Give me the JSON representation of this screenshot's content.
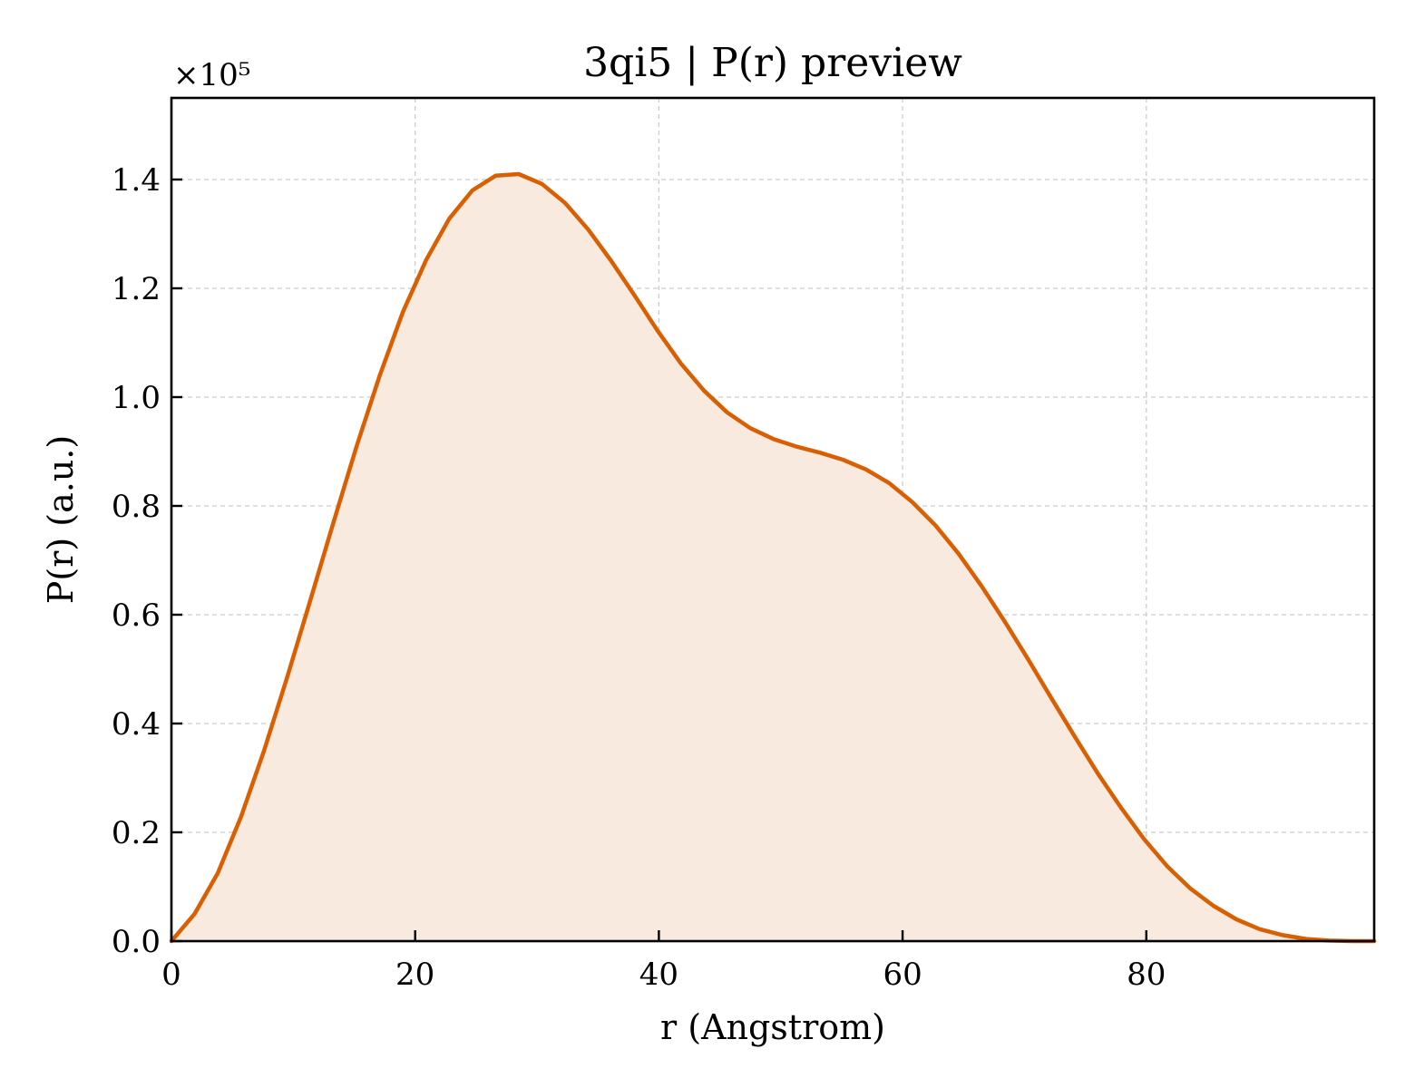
{
  "chart_data": {
    "type": "area",
    "title": "3qi5 | P(r) preview",
    "xlabel": "r (Angstrom)",
    "ylabel": "P(r) (a.u.)",
    "y_multiplier": "×10⁵",
    "xlim": [
      0,
      98.7
    ],
    "ylim": [
      0,
      1.55
    ],
    "xticks": [
      0,
      20,
      40,
      60,
      80
    ],
    "xtick_labels": [
      "0",
      "20",
      "40",
      "60",
      "80"
    ],
    "yticks": [
      0.0,
      0.2,
      0.4,
      0.6,
      0.8,
      1.0,
      1.2,
      1.4
    ],
    "ytick_labels": [
      "0.0",
      "0.2",
      "0.4",
      "0.6",
      "0.8",
      "1.0",
      "1.2",
      "1.4"
    ],
    "grid": true,
    "line_color": "#d95f02",
    "fill_color": "#f9eadf",
    "series": [
      {
        "x": [
          0,
          1.9,
          3.8,
          5.7,
          7.6,
          9.5,
          11.4,
          13.3,
          15.2,
          17.1,
          19.0,
          20.9,
          22.8,
          24.7,
          26.6,
          28.5,
          30.4,
          32.3,
          34.2,
          36.1,
          38.0,
          39.9,
          41.8,
          43.7,
          45.6,
          47.5,
          49.4,
          51.3,
          53.2,
          55.1,
          57.0,
          58.9,
          60.8,
          62.7,
          64.6,
          66.5,
          68.4,
          70.3,
          72.2,
          74.1,
          76.0,
          77.9,
          79.8,
          81.7,
          83.6,
          85.5,
          87.4,
          89.3,
          91.2,
          93.1,
          95.0,
          96.9,
          98.7
        ],
        "y": [
          0.0,
          0.05,
          0.125,
          0.228,
          0.35,
          0.485,
          0.627,
          0.77,
          0.91,
          1.04,
          1.157,
          1.252,
          1.328,
          1.38,
          1.407,
          1.41,
          1.392,
          1.357,
          1.308,
          1.25,
          1.187,
          1.122,
          1.062,
          1.012,
          0.972,
          0.943,
          0.923,
          0.909,
          0.898,
          0.885,
          0.867,
          0.842,
          0.807,
          0.764,
          0.712,
          0.652,
          0.587,
          0.518,
          0.447,
          0.377,
          0.309,
          0.246,
          0.188,
          0.138,
          0.097,
          0.065,
          0.04,
          0.022,
          0.011,
          0.004,
          0.001,
          0.0,
          0.0
        ]
      }
    ]
  }
}
